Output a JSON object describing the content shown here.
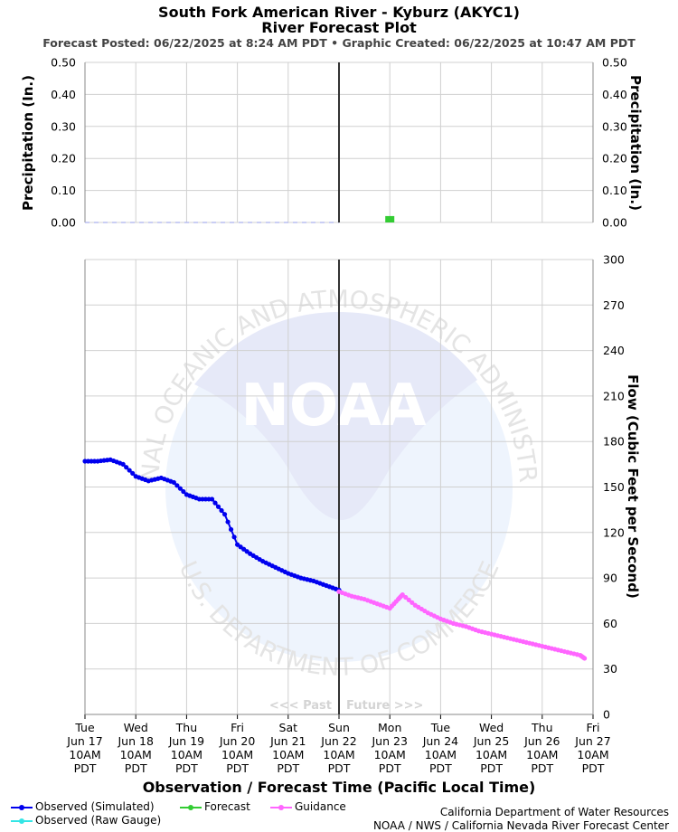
{
  "header": {
    "title_line1": "South Fork American River - Kyburz (AKYC1)",
    "title_line2": "River Forecast Plot",
    "subtitle": "Forecast Posted: 06/22/2025 at 8:24 AM PDT  •  Graphic Created: 06/22/2025 at 10:47 AM PDT"
  },
  "credits": {
    "line1": "California Department of Water Resources",
    "line2": "NOAA / NWS / California Nevada River Forecast Center"
  },
  "watermark": {
    "ring_top": "NATIONAL OCEANIC AND ATMOSPHERIC ADMINISTRATION",
    "ring_bottom": "U.S. DEPARTMENT OF COMMERCE",
    "logo": "NOAA"
  },
  "colors": {
    "observed_sim": "#0000ee",
    "observed_raw": "#33e5e5",
    "forecast": "#33cc33",
    "guidance": "#ff66ff",
    "grid": "#d0d0d0",
    "now_line": "#333333"
  },
  "chart_data": [
    {
      "type": "bar",
      "ylabel": "Precipitation (In.)",
      "ylim": [
        0,
        0.5
      ],
      "yticks": [
        "0.00",
        "0.10",
        "0.20",
        "0.30",
        "0.40",
        "0.50"
      ],
      "grid": true,
      "observed_precip": 0.0,
      "forecast_bars": [
        {
          "x": "2025-06-23T10:00",
          "value": 0.02
        }
      ]
    },
    {
      "type": "line",
      "ylabel": "Flow (Cubic Feet per Second)",
      "xlabel": "Observation / Forecast Time (Pacific Local Time)",
      "ylim": [
        0,
        300
      ],
      "yticks": [
        "0",
        "30",
        "60",
        "90",
        "120",
        "150",
        "180",
        "210",
        "240",
        "270",
        "300"
      ],
      "grid": true,
      "x_range": [
        "2025-06-17T10:00",
        "2025-06-27T10:00"
      ],
      "now": "2025-06-22T10:00",
      "past_label": "<<< Past",
      "future_label": "Future >>>",
      "x_ticks": [
        {
          "dow": "Tue",
          "date": "Jun 17",
          "time": "10AM",
          "tz": "PDT"
        },
        {
          "dow": "Wed",
          "date": "Jun 18",
          "time": "10AM",
          "tz": "PDT"
        },
        {
          "dow": "Thu",
          "date": "Jun 19",
          "time": "10AM",
          "tz": "PDT"
        },
        {
          "dow": "Fri",
          "date": "Jun 20",
          "time": "10AM",
          "tz": "PDT"
        },
        {
          "dow": "Sat",
          "date": "Jun 21",
          "time": "10AM",
          "tz": "PDT"
        },
        {
          "dow": "Sun",
          "date": "Jun 22",
          "time": "10AM",
          "tz": "PDT"
        },
        {
          "dow": "Mon",
          "date": "Jun 23",
          "time": "10AM",
          "tz": "PDT"
        },
        {
          "dow": "Tue",
          "date": "Jun 24",
          "time": "10AM",
          "tz": "PDT"
        },
        {
          "dow": "Wed",
          "date": "Jun 25",
          "time": "10AM",
          "tz": "PDT"
        },
        {
          "dow": "Thu",
          "date": "Jun 26",
          "time": "10AM",
          "tz": "PDT"
        },
        {
          "dow": "Fri",
          "date": "Jun 27",
          "time": "10AM",
          "tz": "PDT"
        }
      ],
      "series": [
        {
          "name": "Observed (Simulated)",
          "points": [
            [
              "2025-06-17T10:00",
              167
            ],
            [
              "2025-06-17T16:00",
              167
            ],
            [
              "2025-06-17T22:00",
              168
            ],
            [
              "2025-06-18T04:00",
              165
            ],
            [
              "2025-06-18T10:00",
              157
            ],
            [
              "2025-06-18T16:00",
              154
            ],
            [
              "2025-06-18T22:00",
              156
            ],
            [
              "2025-06-19T04:00",
              153
            ],
            [
              "2025-06-19T10:00",
              145
            ],
            [
              "2025-06-19T16:00",
              142
            ],
            [
              "2025-06-19T22:00",
              142
            ],
            [
              "2025-06-20T04:00",
              132
            ],
            [
              "2025-06-20T10:00",
              112
            ],
            [
              "2025-06-20T16:00",
              106
            ],
            [
              "2025-06-20T22:00",
              101
            ],
            [
              "2025-06-21T04:00",
              97
            ],
            [
              "2025-06-21T10:00",
              93
            ],
            [
              "2025-06-21T16:00",
              90
            ],
            [
              "2025-06-21T22:00",
              88
            ],
            [
              "2025-06-22T04:00",
              85
            ],
            [
              "2025-06-22T10:00",
              82
            ]
          ]
        },
        {
          "name": "Observed (Raw Gauge)",
          "points": []
        },
        {
          "name": "Forecast",
          "points": []
        },
        {
          "name": "Guidance",
          "points": [
            [
              "2025-06-22T10:00",
              81
            ],
            [
              "2025-06-22T16:00",
              78
            ],
            [
              "2025-06-22T22:00",
              76
            ],
            [
              "2025-06-23T04:00",
              73
            ],
            [
              "2025-06-23T10:00",
              70
            ],
            [
              "2025-06-23T14:00",
              76
            ],
            [
              "2025-06-23T16:00",
              79
            ],
            [
              "2025-06-23T22:00",
              72
            ],
            [
              "2025-06-24T04:00",
              67
            ],
            [
              "2025-06-24T10:00",
              63
            ],
            [
              "2025-06-24T16:00",
              60
            ],
            [
              "2025-06-24T22:00",
              58
            ],
            [
              "2025-06-25T04:00",
              55
            ],
            [
              "2025-06-25T10:00",
              53
            ],
            [
              "2025-06-25T16:00",
              51
            ],
            [
              "2025-06-25T22:00",
              49
            ],
            [
              "2025-06-26T04:00",
              47
            ],
            [
              "2025-06-26T10:00",
              45
            ],
            [
              "2025-06-26T16:00",
              43
            ],
            [
              "2025-06-26T22:00",
              41
            ],
            [
              "2025-06-27T04:00",
              39
            ],
            [
              "2025-06-27T06:00",
              37
            ]
          ]
        }
      ]
    }
  ]
}
